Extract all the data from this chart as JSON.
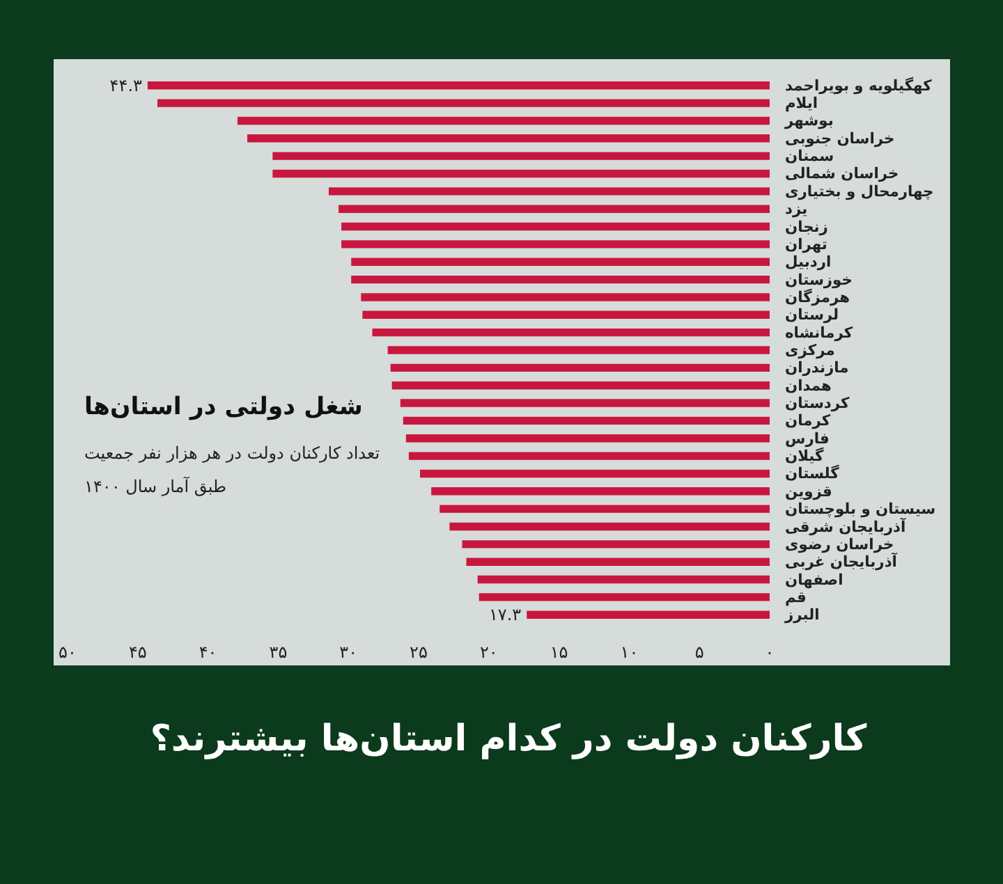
{
  "chart_data": {
    "type": "bar",
    "orientation": "horizontal",
    "title": "شغل دولتی در استان‌ها",
    "subtitle": "تعداد کارکنان دولت در هر هزار نفر جمعیت\nطبق آمار سال ۱۴۰۰",
    "annotations": [
      "کارکنان دولت در کدام استان‌ها بیشترند؟"
    ],
    "categories": [
      "کهگیلویه و بویراحمد",
      "ایلام",
      "بوشهر",
      "خراسان جنوبی",
      "سمنان",
      "خراسان شمالی",
      "چهارمحال و بختیاری",
      "یزد",
      "زنجان",
      "تهران",
      "اردبیل",
      "خوزستان",
      "هرمزگان",
      "لرستان",
      "کرمانشاه",
      "مرکزی",
      "مازندران",
      "همدان",
      "کردستان",
      "کرمان",
      "فارس",
      "گیلان",
      "گلستان",
      "قزوین",
      "سیستان و بلوچستان",
      "آذربایجان شرقی",
      "خراسان رضوی",
      "آذربایجان غربی",
      "اصفهان",
      "قم",
      "البرز"
    ],
    "values": [
      44.3,
      43.6,
      37.9,
      37.2,
      35.4,
      35.4,
      31.4,
      30.7,
      30.5,
      30.5,
      29.8,
      29.8,
      29.1,
      29.0,
      28.3,
      27.2,
      27.0,
      26.9,
      26.3,
      26.1,
      25.9,
      25.7,
      24.9,
      24.1,
      23.5,
      22.8,
      21.9,
      21.6,
      20.8,
      20.7,
      17.3
    ],
    "value_labels": [
      "۴۴.۳",
      null,
      null,
      null,
      null,
      null,
      null,
      null,
      null,
      null,
      null,
      null,
      null,
      null,
      null,
      null,
      null,
      null,
      null,
      null,
      null,
      null,
      null,
      null,
      null,
      null,
      null,
      null,
      null,
      null,
      "۱۷.۳"
    ],
    "color": "#c8173f",
    "xlim": [
      50,
      0
    ],
    "xticks": [
      {
        "value": 50,
        "label": "۵۰"
      },
      {
        "value": 45,
        "label": "۴۵"
      },
      {
        "value": 40,
        "label": "۴۰"
      },
      {
        "value": 35,
        "label": "۳۵"
      },
      {
        "value": 30,
        "label": "۳۰"
      },
      {
        "value": 25,
        "label": "۲۵"
      },
      {
        "value": 20,
        "label": "۲۰"
      },
      {
        "value": 15,
        "label": "۱۵"
      },
      {
        "value": 10,
        "label": "۱۰"
      },
      {
        "value": 5,
        "label": "۵"
      },
      {
        "value": 0,
        "label": "۰"
      }
    ],
    "grid": false
  }
}
